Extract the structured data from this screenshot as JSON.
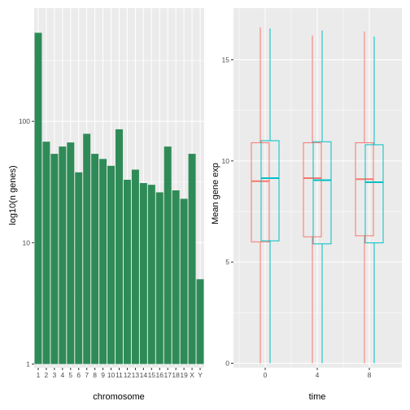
{
  "colors": {
    "panel_bg": "#ebebeb",
    "grid_major": "#ffffff",
    "bar_fill": "#2e8b57",
    "box_series_1": "#f8766d",
    "box_series_2": "#00bfc4"
  },
  "chart_data": [
    {
      "type": "bar",
      "title": "",
      "xlabel": "chromosome",
      "ylabel": "log10(n genes)",
      "y_scale": "log10",
      "ylim": [
        1,
        620
      ],
      "y_ticks": [
        1,
        10,
        100
      ],
      "y_tick_labels": [
        "1",
        "10",
        "100"
      ],
      "grid": true,
      "categories": [
        "1",
        "2",
        "3",
        "4",
        "5",
        "6",
        "7",
        "8",
        "9",
        "10",
        "11",
        "12",
        "13",
        "14",
        "15",
        "16",
        "17",
        "18",
        "19",
        "X",
        "Y"
      ],
      "values": [
        537,
        68,
        54,
        62,
        67,
        38,
        79,
        54,
        49,
        43,
        86,
        33,
        40,
        31,
        30,
        26,
        62,
        27,
        23,
        54,
        5
      ]
    },
    {
      "type": "box",
      "title": "",
      "xlabel": "time",
      "ylabel": "Mean gene exp",
      "ylim": [
        -0.4,
        17.2
      ],
      "y_ticks": [
        0,
        5,
        10,
        15
      ],
      "y_tick_labels": [
        "0",
        "5",
        "10",
        "15"
      ],
      "grid": true,
      "categories": [
        0,
        4,
        8
      ],
      "category_labels": [
        "0",
        "4",
        "8"
      ],
      "series": [
        {
          "color_key": "box_series_1",
          "boxes": [
            {
              "min": 0,
              "q1": 6.0,
              "median": 9.0,
              "q3": 10.9,
              "max": 16.6
            },
            {
              "min": 0,
              "q1": 6.25,
              "median": 9.15,
              "q3": 10.9,
              "max": 16.2
            },
            {
              "min": 0,
              "q1": 6.3,
              "median": 9.1,
              "q3": 10.9,
              "max": 16.4
            }
          ]
        },
        {
          "color_key": "box_series_2",
          "boxes": [
            {
              "min": 0,
              "q1": 6.05,
              "median": 9.15,
              "q3": 11.0,
              "max": 16.55
            },
            {
              "min": 0,
              "q1": 5.9,
              "median": 9.05,
              "q3": 10.95,
              "max": 16.45
            },
            {
              "min": 0,
              "q1": 5.95,
              "median": 8.95,
              "q3": 10.8,
              "max": 16.15
            }
          ]
        }
      ]
    }
  ]
}
